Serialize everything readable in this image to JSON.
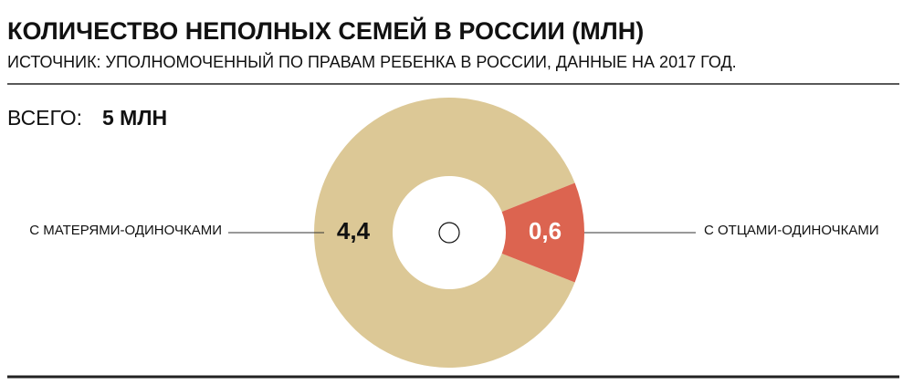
{
  "chart_data": {
    "type": "donut",
    "title": "КОЛИЧЕСТВО НЕПОЛНЫХ СЕМЕЙ В РОССИИ (МЛН)",
    "subtitle": "ИСТОЧНИК: УПОЛНОМОЧЕННЫЙ ПО ПРАВАМ РЕБЕНКА В РОССИИ, ДАННЫЕ НА 2017 ГОД.",
    "total_label": "ВСЕГО:",
    "total": "5 МЛН",
    "categories": [
      "С МАТЕРЯМИ-ОДИНОЧКАМИ",
      "С ОТЦАМИ-ОДИНОЧКАМИ"
    ],
    "values": [
      4.4,
      0.6
    ],
    "value_labels": [
      "4,4",
      "0,6"
    ],
    "colors": [
      "#dcc896",
      "#dc6450"
    ]
  }
}
